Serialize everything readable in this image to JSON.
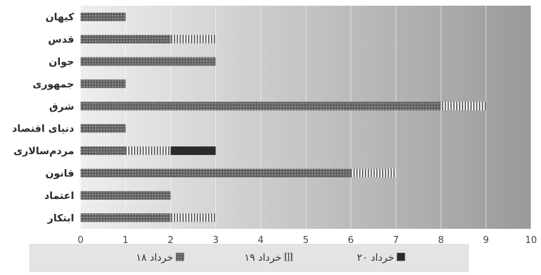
{
  "chart_data": {
    "type": "bar",
    "orientation": "horizontal",
    "stacked": true,
    "categories": [
      "کیهان",
      "قدس",
      "جوان",
      "جمهوری",
      "شرق",
      "دنیای اقتصاد",
      "مردم‌سالاری",
      "قانون",
      "اعتماد",
      "ابتکار"
    ],
    "series": [
      {
        "name": "۱۸ خرداد",
        "values": [
          1,
          2,
          3,
          1,
          8,
          1,
          1,
          6,
          2,
          2
        ]
      },
      {
        "name": "۱۹ خرداد",
        "values": [
          0,
          1,
          0,
          0,
          1,
          0,
          1,
          1,
          0,
          1
        ]
      },
      {
        "name": "۲۰ خرداد",
        "values": [
          0,
          0,
          0,
          0,
          0,
          0,
          1,
          0,
          0,
          0
        ]
      }
    ],
    "xticks": [
      "0",
      "1",
      "2",
      "3",
      "4",
      "5",
      "6",
      "7",
      "8",
      "9",
      "10"
    ],
    "xlim": [
      0,
      10
    ],
    "grid": true,
    "legend_position": "bottom",
    "colors": {
      "series_1": "#5f5f5f",
      "series_2": "#f2f2f2",
      "series_3": "#2a2a2a",
      "background_light": "#e8e8e8",
      "background_dark": "#9e9e9e",
      "legend_bg": "#e4e4e4"
    }
  }
}
